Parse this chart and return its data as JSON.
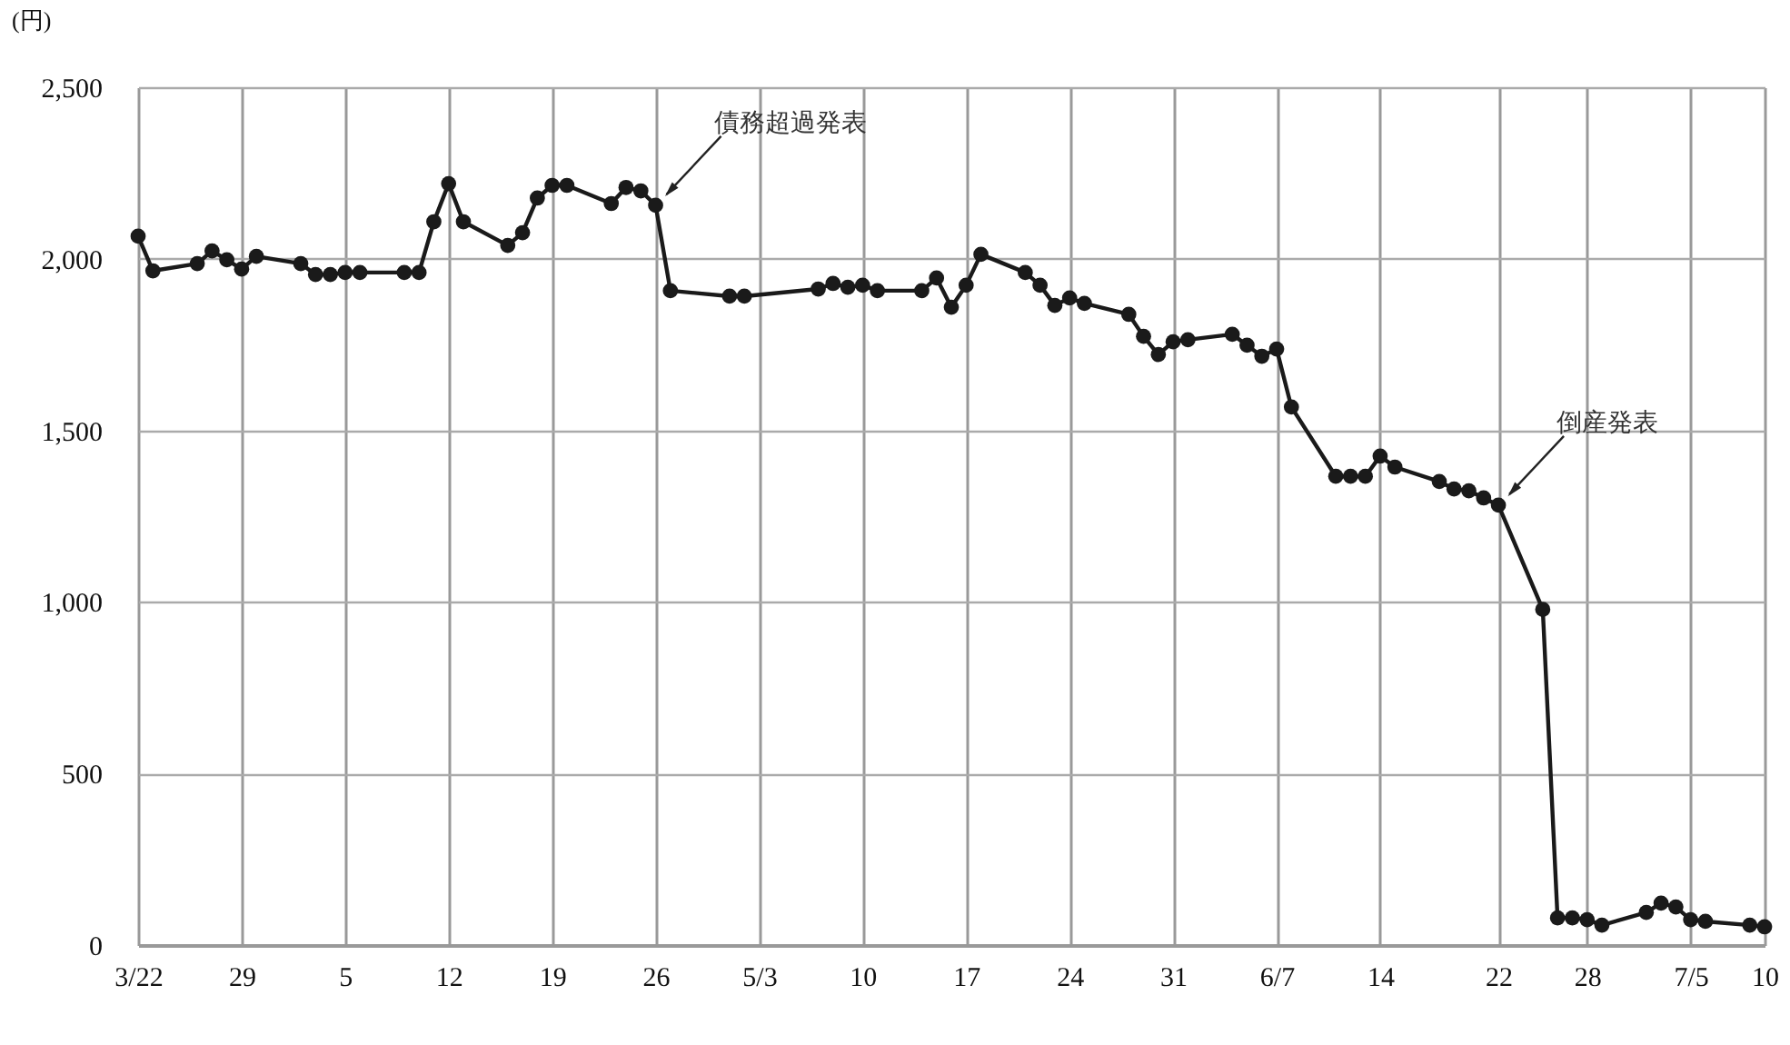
{
  "chart_data": {
    "type": "line",
    "ylabel": "(円)",
    "x": [
      "--03-22",
      "--03-23",
      "--03-26",
      "--03-27",
      "--03-28",
      "--03-29",
      "--03-30",
      "--04-02",
      "--04-03",
      "--04-04",
      "--04-05",
      "--04-06",
      "--04-09",
      "--04-10",
      "--04-11",
      "--04-12",
      "--04-13",
      "--04-16",
      "--04-17",
      "--04-18",
      "--04-19",
      "--04-20",
      "--04-23",
      "--04-24",
      "--04-25",
      "--04-26",
      "--04-27",
      "--05-01",
      "--05-02",
      "--05-07",
      "--05-08",
      "--05-09",
      "--05-10",
      "--05-11",
      "--05-14",
      "--05-15",
      "--05-16",
      "--05-17",
      "--05-18",
      "--05-21",
      "--05-22",
      "--05-23",
      "--05-24",
      "--05-25",
      "--05-28",
      "--05-29",
      "--05-30",
      "--05-31",
      "--06-01",
      "--06-04",
      "--06-05",
      "--06-06",
      "--06-07",
      "--06-08",
      "--06-11",
      "--06-12",
      "--06-13",
      "--06-14",
      "--06-15",
      "--06-18",
      "--06-19",
      "--06-20",
      "--06-21",
      "--06-22",
      "--06-25",
      "--06-26",
      "--06-27",
      "--06-28",
      "--06-29",
      "--07-02",
      "--07-03",
      "--07-04",
      "--07-05",
      "--07-06",
      "--07-09",
      "--07-10"
    ],
    "series": [
      {
        "color": "#1a1a1a",
        "values": [
          2066,
          1965,
          1986,
          2023,
          1997,
          1970,
          2007,
          1986,
          1954,
          1954,
          1960,
          1960,
          1960,
          1960,
          2108,
          2219,
          2108,
          2039,
          2076,
          2177,
          2214,
          2214,
          2161,
          2208,
          2198,
          2156,
          1907,
          1891,
          1891,
          1912,
          1928,
          1917,
          1923,
          1907,
          1907,
          1944,
          1859,
          1923,
          2013,
          1960,
          1923,
          1864,
          1886,
          1870,
          1838,
          1774,
          1721,
          1758,
          1764,
          1780,
          1748,
          1716,
          1737,
          1568,
          1366,
          1366,
          1366,
          1425,
          1393,
          1351,
          1329,
          1324,
          1303,
          1282,
          978,
          79,
          79,
          74,
          58,
          95,
          122,
          111,
          74,
          69,
          58,
          53
        ]
      }
    ],
    "xlim": [
      "--03-22",
      "--07-10"
    ],
    "xticks": [
      {
        "value": "--03-22",
        "label": "3/22"
      },
      {
        "value": "--03-29",
        "label": "29"
      },
      {
        "value": "--04-05",
        "label": "5"
      },
      {
        "value": "--04-12",
        "label": "12"
      },
      {
        "value": "--04-19",
        "label": "19"
      },
      {
        "value": "--04-26",
        "label": "26"
      },
      {
        "value": "--05-03",
        "label": "5/3"
      },
      {
        "value": "--05-10",
        "label": "10"
      },
      {
        "value": "--05-17",
        "label": "17"
      },
      {
        "value": "--05-24",
        "label": "24"
      },
      {
        "value": "--05-31",
        "label": "31"
      },
      {
        "value": "--06-07",
        "label": "6/7"
      },
      {
        "value": "--06-14",
        "label": "14"
      },
      {
        "value": "--06-22",
        "label": "22"
      },
      {
        "value": "--06-28",
        "label": "28"
      },
      {
        "value": "--07-05",
        "label": "7/5"
      },
      {
        "value": "--07-10",
        "label": "10"
      }
    ],
    "ylim": [
      0,
      2500
    ],
    "yticks": [
      0,
      500,
      {
        "value": 1000,
        "label": "1,000"
      },
      {
        "value": 1500,
        "label": "1,500"
      },
      {
        "value": 2000,
        "label": "2,000"
      },
      {
        "value": 2500,
        "label": "2,500"
      }
    ],
    "grid": true,
    "marker": "circle",
    "annotations": [
      {
        "text": "債務超過発表",
        "x": "--04-26",
        "y": 2156
      },
      {
        "text": "倒産発表",
        "x": "--06-22",
        "y": 1282
      }
    ]
  }
}
